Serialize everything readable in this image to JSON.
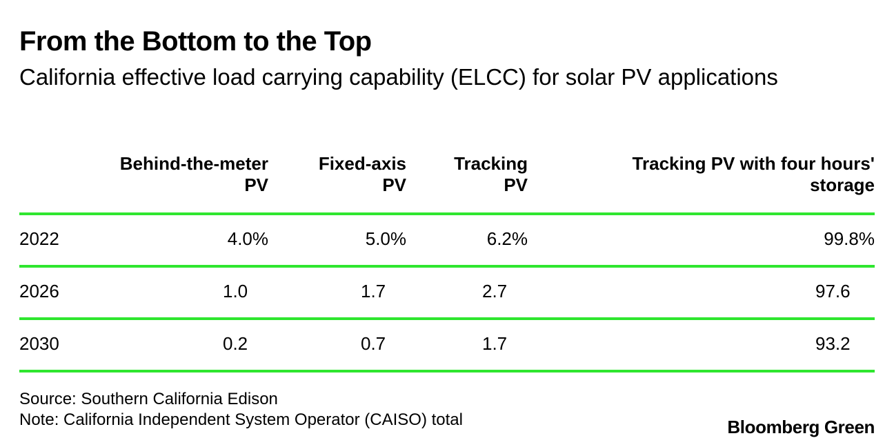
{
  "chart_data": {
    "type": "table",
    "title": "From the Bottom to the Top",
    "subtitle": "California effective load carrying capability (ELCC) for solar PV applications",
    "columns": [
      {
        "line1": "Behind-the-meter",
        "line2": "PV"
      },
      {
        "line1": "Fixed-axis",
        "line2": "PV"
      },
      {
        "line1": "Tracking",
        "line2": "PV"
      },
      {
        "line1": "Tracking PV with four hours'",
        "line2": "storage"
      }
    ],
    "rows": [
      {
        "year": "2022",
        "values": [
          "4.0%",
          "5.0%",
          "6.2%",
          "99.8%"
        ]
      },
      {
        "year": "2026",
        "values": [
          "1.0",
          "1.7",
          "2.7",
          "97.6"
        ]
      },
      {
        "year": "2030",
        "values": [
          "0.2",
          "0.7",
          "1.7",
          "93.2"
        ]
      }
    ],
    "source": "Source: Southern California Edison",
    "note": "Note: California Independent System Operator (CAISO) total"
  },
  "brand": "Bloomberg Green",
  "colors": {
    "rule": "#2fe62f",
    "text": "#000000",
    "background": "#ffffff"
  }
}
